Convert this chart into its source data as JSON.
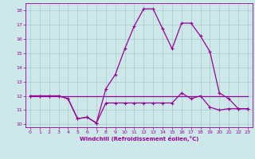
{
  "xlabel": "Windchill (Refroidissement éolien,°C)",
  "bg_color": "#cce8e8",
  "line_color": "#990099",
  "grid_color": "#aacccc",
  "xlim": [
    -0.5,
    23.5
  ],
  "ylim": [
    9.8,
    18.5
  ],
  "yticks": [
    10,
    11,
    12,
    13,
    14,
    15,
    16,
    17,
    18
  ],
  "xticks": [
    0,
    1,
    2,
    3,
    4,
    5,
    6,
    7,
    8,
    9,
    10,
    11,
    12,
    13,
    14,
    15,
    16,
    17,
    18,
    19,
    20,
    21,
    22,
    23
  ],
  "hours": [
    0,
    1,
    2,
    3,
    4,
    5,
    6,
    7,
    8,
    9,
    10,
    11,
    12,
    13,
    14,
    15,
    16,
    17,
    18,
    19,
    20,
    21,
    22,
    23
  ],
  "windchill": [
    12,
    12,
    12,
    12,
    11.8,
    10.4,
    10.5,
    10.1,
    12.5,
    13.5,
    15.3,
    16.9,
    18.1,
    18.1,
    16.7,
    15.3,
    17.1,
    17.1,
    16.2,
    15.1,
    12.2,
    11.8,
    11.1,
    11.1
  ],
  "temperature": [
    12,
    12,
    12,
    12,
    11.8,
    10.4,
    10.5,
    10.1,
    11.5,
    11.5,
    11.5,
    11.5,
    11.5,
    11.5,
    11.5,
    11.5,
    12.2,
    11.8,
    12,
    11.2,
    11,
    11.1,
    11.1,
    11.1
  ],
  "flat_line": [
    12,
    12,
    12,
    12,
    12,
    12,
    12,
    12,
    12,
    12,
    12,
    12,
    12,
    12,
    12,
    12,
    12,
    12,
    12,
    12,
    12,
    12,
    12,
    12
  ]
}
